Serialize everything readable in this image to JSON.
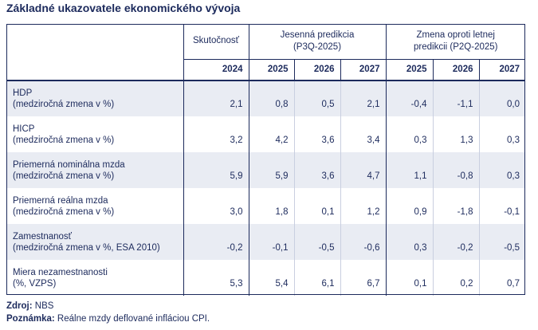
{
  "title": "Základné ukazovatele ekonomického vývoja",
  "header": {
    "actual": "Skutočnosť",
    "forecast_line1": "Jesenná predikcia",
    "forecast_line2": "(P3Q-2025)",
    "change_line1": "Zmena oproti letnej",
    "change_line2": "predikcii (P2Q-2025)",
    "years": [
      "2024",
      "2025",
      "2026",
      "2027",
      "2025",
      "2026",
      "2027"
    ]
  },
  "rows": [
    {
      "line1": "HDP",
      "line2": "(medziročná zmena v %)",
      "values": [
        "2,1",
        "0,8",
        "0,5",
        "2,1",
        "-0,4",
        "-1,1",
        "0,0"
      ]
    },
    {
      "line1": "HICP",
      "line2": "(medziročná zmena v %)",
      "values": [
        "3,2",
        "4,2",
        "3,6",
        "3,4",
        "0,3",
        "1,3",
        "0,3"
      ]
    },
    {
      "line1": "Priemerná nominálna mzda",
      "line2": "(medziročná zmena v %)",
      "values": [
        "5,9",
        "5,9",
        "3,6",
        "4,7",
        "1,1",
        "-0,8",
        "0,3"
      ]
    },
    {
      "line1": "Priemerná reálna mzda",
      "line2": "(medziročná zmena v %)",
      "values": [
        "3,0",
        "1,8",
        "0,1",
        "1,2",
        "0,9",
        "-1,8",
        "-0,1"
      ]
    },
    {
      "line1": "Zamestnanosť",
      "line2": "(medziročná zmena v %, ESA 2010)",
      "values": [
        "-0,2",
        "-0,1",
        "-0,5",
        "-0,6",
        "0,3",
        "-0,2",
        "-0,5"
      ]
    },
    {
      "line1": "Miera nezamestnanosti",
      "line2": "(%, VZPS)",
      "values": [
        "5,3",
        "5,4",
        "6,1",
        "6,7",
        "0,1",
        "0,2",
        "0,7"
      ]
    }
  ],
  "footer": {
    "source_label": "Zdroj:",
    "source_value": "NBS",
    "note_label": "Poznámka:",
    "note_value": "Reálne mzdy deflované infláciou CPI."
  }
}
